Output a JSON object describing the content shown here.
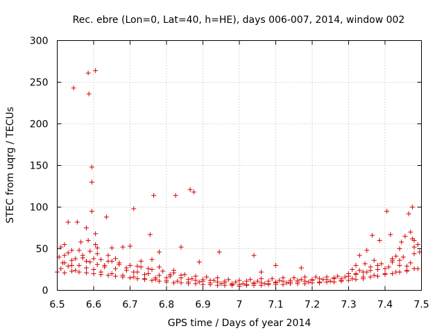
{
  "chart_data": {
    "type": "scatter",
    "title": "Rec. ebre (Lon=0, Lat=40, h=HE), days 006-007, 2014, window 002",
    "xlabel": "GPS time / Days of year 2014",
    "ylabel": "STEC from uqrg / TECUs",
    "xlim": [
      6.5,
      7.5
    ],
    "ylim": [
      0,
      300
    ],
    "x_ticks": [
      "6.5",
      "6.6",
      "6.7",
      "6.8",
      "6.9",
      "7",
      "7.1",
      "7.2",
      "7.3",
      "7.4",
      "7.5"
    ],
    "y_ticks": [
      "0",
      "50",
      "100",
      "150",
      "200",
      "250",
      "300"
    ],
    "grid": true,
    "marker": "+",
    "color": "#d40000",
    "series": [
      {
        "name": "STEC",
        "points": [
          [
            6.51,
            26
          ],
          [
            6.52,
            33
          ],
          [
            6.52,
            42
          ],
          [
            6.53,
            29
          ],
          [
            6.54,
            36
          ],
          [
            6.55,
            24
          ],
          [
            6.56,
            30
          ],
          [
            6.57,
            39
          ],
          [
            6.58,
            27
          ],
          [
            6.59,
            34
          ],
          [
            6.6,
            25
          ],
          [
            6.61,
            31
          ],
          [
            6.62,
            22
          ],
          [
            6.63,
            28
          ],
          [
            6.64,
            35
          ],
          [
            6.65,
            20
          ],
          [
            6.66,
            26
          ],
          [
            6.67,
            33
          ],
          [
            6.68,
            18
          ],
          [
            6.69,
            24
          ],
          [
            6.7,
            30
          ],
          [
            6.71,
            16
          ],
          [
            6.72,
            22
          ],
          [
            6.73,
            28
          ],
          [
            6.74,
            14
          ],
          [
            6.75,
            20
          ],
          [
            6.76,
            25
          ],
          [
            6.77,
            13
          ],
          [
            6.78,
            18
          ],
          [
            6.79,
            23
          ],
          [
            6.8,
            12
          ],
          [
            6.81,
            17
          ],
          [
            6.82,
            21
          ],
          [
            6.83,
            11
          ],
          [
            6.84,
            15
          ],
          [
            6.85,
            19
          ],
          [
            6.86,
            10
          ],
          [
            6.87,
            14
          ],
          [
            6.88,
            17
          ],
          [
            6.89,
            10
          ],
          [
            6.9,
            13
          ],
          [
            6.91,
            16
          ],
          [
            6.92,
            9
          ],
          [
            6.93,
            12
          ],
          [
            6.94,
            15
          ],
          [
            6.95,
            8
          ],
          [
            6.96,
            11
          ],
          [
            6.97,
            13
          ],
          [
            6.98,
            7
          ],
          [
            6.99,
            10
          ],
          [
            7.0,
            12
          ],
          [
            7.01,
            8
          ],
          [
            7.02,
            11
          ],
          [
            7.03,
            13
          ],
          [
            7.04,
            9
          ],
          [
            7.05,
            11
          ],
          [
            7.06,
            14
          ],
          [
            7.07,
            8
          ],
          [
            7.08,
            11
          ],
          [
            7.09,
            14
          ],
          [
            7.1,
            9
          ],
          [
            7.11,
            12
          ],
          [
            7.12,
            15
          ],
          [
            7.13,
            9
          ],
          [
            7.14,
            12
          ],
          [
            7.15,
            15
          ],
          [
            7.16,
            10
          ],
          [
            7.17,
            13
          ],
          [
            7.18,
            16
          ],
          [
            7.19,
            10
          ],
          [
            7.2,
            13
          ],
          [
            7.21,
            16
          ],
          [
            7.22,
            10
          ],
          [
            7.23,
            13
          ],
          [
            7.24,
            16
          ],
          [
            7.25,
            11
          ],
          [
            7.26,
            14
          ],
          [
            7.27,
            17
          ],
          [
            7.28,
            12
          ],
          [
            7.29,
            16
          ],
          [
            7.3,
            20
          ],
          [
            7.31,
            14
          ],
          [
            7.32,
            19
          ],
          [
            7.33,
            24
          ],
          [
            7.34,
            16
          ],
          [
            7.35,
            22
          ],
          [
            7.36,
            28
          ],
          [
            7.37,
            18
          ],
          [
            7.38,
            25
          ],
          [
            7.39,
            32
          ],
          [
            7.4,
            20
          ],
          [
            7.41,
            28
          ],
          [
            7.42,
            36
          ],
          [
            7.43,
            22
          ],
          [
            7.44,
            30
          ],
          [
            7.45,
            40
          ],
          [
            7.46,
            24
          ],
          [
            7.47,
            33
          ],
          [
            7.48,
            44
          ],
          [
            7.49,
            26
          ],
          [
            6.505,
            40
          ],
          [
            6.51,
            52
          ],
          [
            6.515,
            33
          ],
          [
            6.52,
            55
          ],
          [
            6.53,
            45
          ],
          [
            6.54,
            30
          ],
          [
            6.55,
            38
          ],
          [
            6.56,
            48
          ],
          [
            6.565,
            58
          ],
          [
            6.57,
            42
          ],
          [
            6.58,
            35
          ],
          [
            6.585,
            60
          ],
          [
            6.59,
            47
          ],
          [
            6.6,
            38
          ],
          [
            6.605,
            55
          ],
          [
            6.61,
            44
          ],
          [
            6.62,
            37
          ],
          [
            6.63,
            30
          ],
          [
            6.64,
            42
          ],
          [
            6.65,
            35
          ],
          [
            6.66,
            38
          ],
          [
            6.67,
            31
          ],
          [
            6.68,
            52
          ],
          [
            6.69,
            27
          ],
          [
            6.7,
            53
          ],
          [
            6.71,
            22
          ],
          [
            6.72,
            29
          ],
          [
            6.73,
            35
          ],
          [
            6.74,
            19
          ],
          [
            6.75,
            26
          ],
          [
            6.76,
            37
          ],
          [
            6.77,
            15
          ],
          [
            6.78,
            28
          ],
          [
            6.8,
            15
          ],
          [
            6.81,
            19
          ],
          [
            6.82,
            24
          ],
          [
            6.84,
            18
          ],
          [
            6.86,
            13
          ],
          [
            6.88,
            12
          ],
          [
            6.9,
            11
          ],
          [
            6.92,
            12
          ],
          [
            6.94,
            10
          ],
          [
            6.96,
            9
          ],
          [
            6.98,
            8
          ],
          [
            7.0,
            7
          ],
          [
            7.02,
            7
          ],
          [
            7.04,
            8
          ],
          [
            7.06,
            9
          ],
          [
            7.08,
            8
          ],
          [
            7.1,
            10
          ],
          [
            7.12,
            11
          ],
          [
            7.14,
            10
          ],
          [
            7.16,
            12
          ],
          [
            7.18,
            11
          ],
          [
            7.2,
            12
          ],
          [
            7.22,
            14
          ],
          [
            7.24,
            13
          ],
          [
            7.26,
            15
          ],
          [
            7.28,
            14
          ],
          [
            7.3,
            17
          ],
          [
            7.32,
            20
          ],
          [
            7.34,
            22
          ],
          [
            7.36,
            24
          ],
          [
            7.38,
            30
          ],
          [
            7.4,
            26
          ],
          [
            7.42,
            34
          ],
          [
            7.44,
            36
          ],
          [
            7.46,
            29
          ],
          [
            7.48,
            52
          ],
          [
            7.495,
            46
          ],
          [
            6.5,
            22
          ],
          [
            6.52,
            21
          ],
          [
            6.54,
            23
          ],
          [
            6.56,
            22
          ],
          [
            6.58,
            21
          ],
          [
            6.6,
            20
          ],
          [
            6.62,
            19
          ],
          [
            6.64,
            18
          ],
          [
            6.66,
            17
          ],
          [
            6.68,
            16
          ],
          [
            6.7,
            15
          ],
          [
            6.72,
            14
          ],
          [
            6.74,
            13
          ],
          [
            6.76,
            12
          ],
          [
            6.78,
            11
          ],
          [
            6.8,
            10
          ],
          [
            6.82,
            9
          ],
          [
            6.84,
            9
          ],
          [
            6.86,
            8
          ],
          [
            6.88,
            8
          ],
          [
            6.9,
            7
          ],
          [
            6.92,
            7
          ],
          [
            6.94,
            6
          ],
          [
            6.96,
            6
          ],
          [
            6.98,
            6
          ],
          [
            7.0,
            5
          ],
          [
            7.02,
            6
          ],
          [
            7.04,
            6
          ],
          [
            7.06,
            6
          ],
          [
            7.08,
            7
          ],
          [
            7.1,
            7
          ],
          [
            7.12,
            7
          ],
          [
            7.14,
            8
          ],
          [
            7.16,
            8
          ],
          [
            7.18,
            8
          ],
          [
            7.2,
            9
          ],
          [
            7.22,
            9
          ],
          [
            7.24,
            10
          ],
          [
            7.26,
            10
          ],
          [
            7.28,
            11
          ],
          [
            7.3,
            12
          ],
          [
            7.32,
            13
          ],
          [
            7.34,
            14
          ],
          [
            7.36,
            16
          ],
          [
            7.38,
            17
          ],
          [
            7.4,
            19
          ],
          [
            7.42,
            20
          ],
          [
            7.44,
            22
          ],
          [
            7.46,
            23
          ],
          [
            7.48,
            26
          ],
          [
            6.545,
            243
          ],
          [
            6.585,
            261
          ],
          [
            6.587,
            236
          ],
          [
            6.605,
            264
          ],
          [
            6.595,
            148
          ],
          [
            6.595,
            130
          ],
          [
            6.595,
            95
          ],
          [
            6.53,
            82
          ],
          [
            6.555,
            82
          ],
          [
            6.58,
            75
          ],
          [
            6.605,
            68
          ],
          [
            6.635,
            88
          ],
          [
            6.71,
            98
          ],
          [
            6.755,
            67
          ],
          [
            6.765,
            114
          ],
          [
            6.825,
            114
          ],
          [
            6.865,
            121
          ],
          [
            6.875,
            118
          ],
          [
            6.84,
            52
          ],
          [
            6.78,
            46
          ],
          [
            6.89,
            34
          ],
          [
            6.945,
            46
          ],
          [
            6.65,
            51
          ],
          [
            6.54,
            48
          ],
          [
            6.61,
            51
          ],
          [
            7.04,
            42
          ],
          [
            7.1,
            30
          ],
          [
            7.17,
            27
          ],
          [
            7.06,
            22
          ],
          [
            7.33,
            42
          ],
          [
            7.35,
            48
          ],
          [
            7.365,
            66
          ],
          [
            7.385,
            60
          ],
          [
            7.405,
            95
          ],
          [
            7.415,
            67
          ],
          [
            7.445,
            58
          ],
          [
            7.455,
            65
          ],
          [
            7.465,
            92
          ],
          [
            7.475,
            62
          ],
          [
            7.475,
            100
          ],
          [
            7.47,
            70
          ],
          [
            7.48,
            60
          ],
          [
            7.49,
            55
          ],
          [
            7.44,
            50
          ],
          [
            7.43,
            41
          ],
          [
            7.42,
            38
          ],
          [
            7.37,
            36
          ],
          [
            7.345,
            32
          ],
          [
            7.32,
            30
          ],
          [
            7.31,
            25
          ]
        ]
      }
    ]
  }
}
